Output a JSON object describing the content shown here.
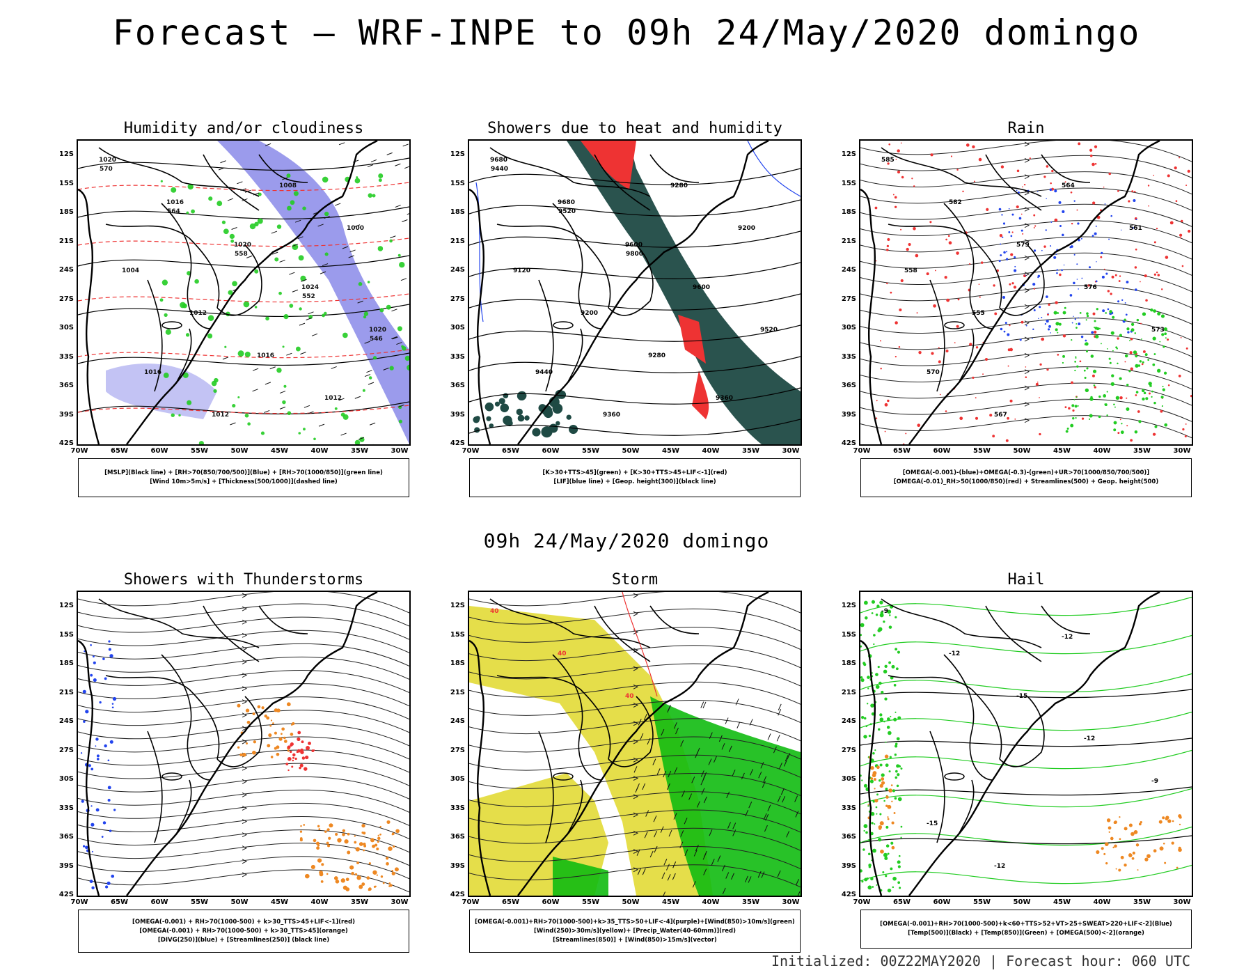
{
  "header": {
    "title": "Forecast — WRF-INPE to 09h 24/May/2020 domingo"
  },
  "mid_title": "09h 24/May/2020 domingo",
  "footer": "Initialized: 00Z22MAY2020 | Forecast hour: 060 UTC",
  "axes": {
    "lat_ticks": [
      "12S",
      "15S",
      "18S",
      "21S",
      "24S",
      "27S",
      "30S",
      "33S",
      "36S",
      "39S",
      "42S"
    ],
    "lon_ticks": [
      "70W",
      "65W",
      "60W",
      "55W",
      "50W",
      "45W",
      "40W",
      "35W",
      "30W"
    ]
  },
  "colors": {
    "humidity_blue": "#7a7ae6",
    "rh_green": "#22cc22",
    "thickness_red": "#ee3333",
    "lif_blue": "#2244ee",
    "dark_green": "#1f4a44",
    "precip_red": "#ee3333",
    "jet_yellow": "#e0d82a",
    "wind_green": "#11bb11",
    "orange": "#ee8822"
  },
  "panels": [
    {
      "id": "humidity",
      "title": "Humidity and/or cloudiness",
      "legend": [
        "[MSLP](Black line) + [RH>70(850/700/500)](Blue) + [RH>70(1000/850)](green line)",
        "[Wind 10m>5m/s] + [Thickness(500/1000)](dashed line)"
      ],
      "contour_labels": [
        "1020",
        "1016",
        "1020",
        "1024",
        "1020",
        "1016",
        "1012",
        "1008",
        "1000",
        "1004",
        "1012",
        "1016",
        "1012",
        "570",
        "564",
        "558",
        "552",
        "546"
      ]
    },
    {
      "id": "showers-heat",
      "title": "Showers due to heat and humidity",
      "legend": [
        "[K>30+TTS>45](green) + [K>30+TTS>45+LIF<-1](red)",
        "[LIF](blue line) + [Geop. height(300)](black line)"
      ],
      "contour_labels": [
        "9680",
        "9680",
        "9600",
        "9600",
        "9520",
        "9440",
        "9360",
        "9280",
        "9200",
        "9120",
        "9200",
        "9280",
        "9360",
        "9440",
        "9520",
        "9800"
      ]
    },
    {
      "id": "rain",
      "title": "Rain",
      "legend": [
        "[OMEGA(-0.001)-(blue)+OMEGA(-0.3)-(green)+UR>70(1000/850/700/500)]",
        "[OMEGA(-0.01)_RH>50(1000/850)(red) + Streamlines(500) + Geop. height(500)"
      ],
      "contour_labels": [
        "585",
        "582",
        "579",
        "576",
        "573",
        "570",
        "567",
        "564",
        "561",
        "558",
        "555"
      ]
    },
    {
      "id": "thunderstorms",
      "title": "Showers with Thunderstorms",
      "legend": [
        "[OMEGA(-0.001) + RH>70(1000-500) + k>30_TTS>45+LIF<-1](red)",
        "[OMEGA(-0.001) + RH>70(1000-500) + k>30_TTS>45](orange)",
        "[DIVG(250)](blue) + [Streamlines(250)] (black line)"
      ],
      "contour_labels": []
    },
    {
      "id": "storm",
      "title": "Storm",
      "legend": [
        "[OMEGA(-0.001)+RH>70(1000-500)+k>35_TTS>50+LIF<-4](purple)+[Wind(850)>10m/s](green)",
        "[Wind(250)>30m/s](yellow)+ [Precip_Water(40-60mm)](red)",
        "[Streamlines(850)] + [Wind(850)>15m/s](vector)"
      ],
      "contour_labels": [
        "40",
        "40",
        "40"
      ]
    },
    {
      "id": "hail",
      "title": "Hail",
      "legend": [
        "[OMEGA(-0.001)+RH>70(1000-500)+k<60+TTS>52+VT>25+SWEAT>220+LIF<-2](Blue)",
        "[Temp(500)](Black) + [Temp(850)](Green) + [OMEGA(500)<-2](orange)"
      ],
      "contour_labels": [
        "-9",
        "-12",
        "-15",
        "-12",
        "-9",
        "-15",
        "-12",
        "-12"
      ]
    }
  ]
}
